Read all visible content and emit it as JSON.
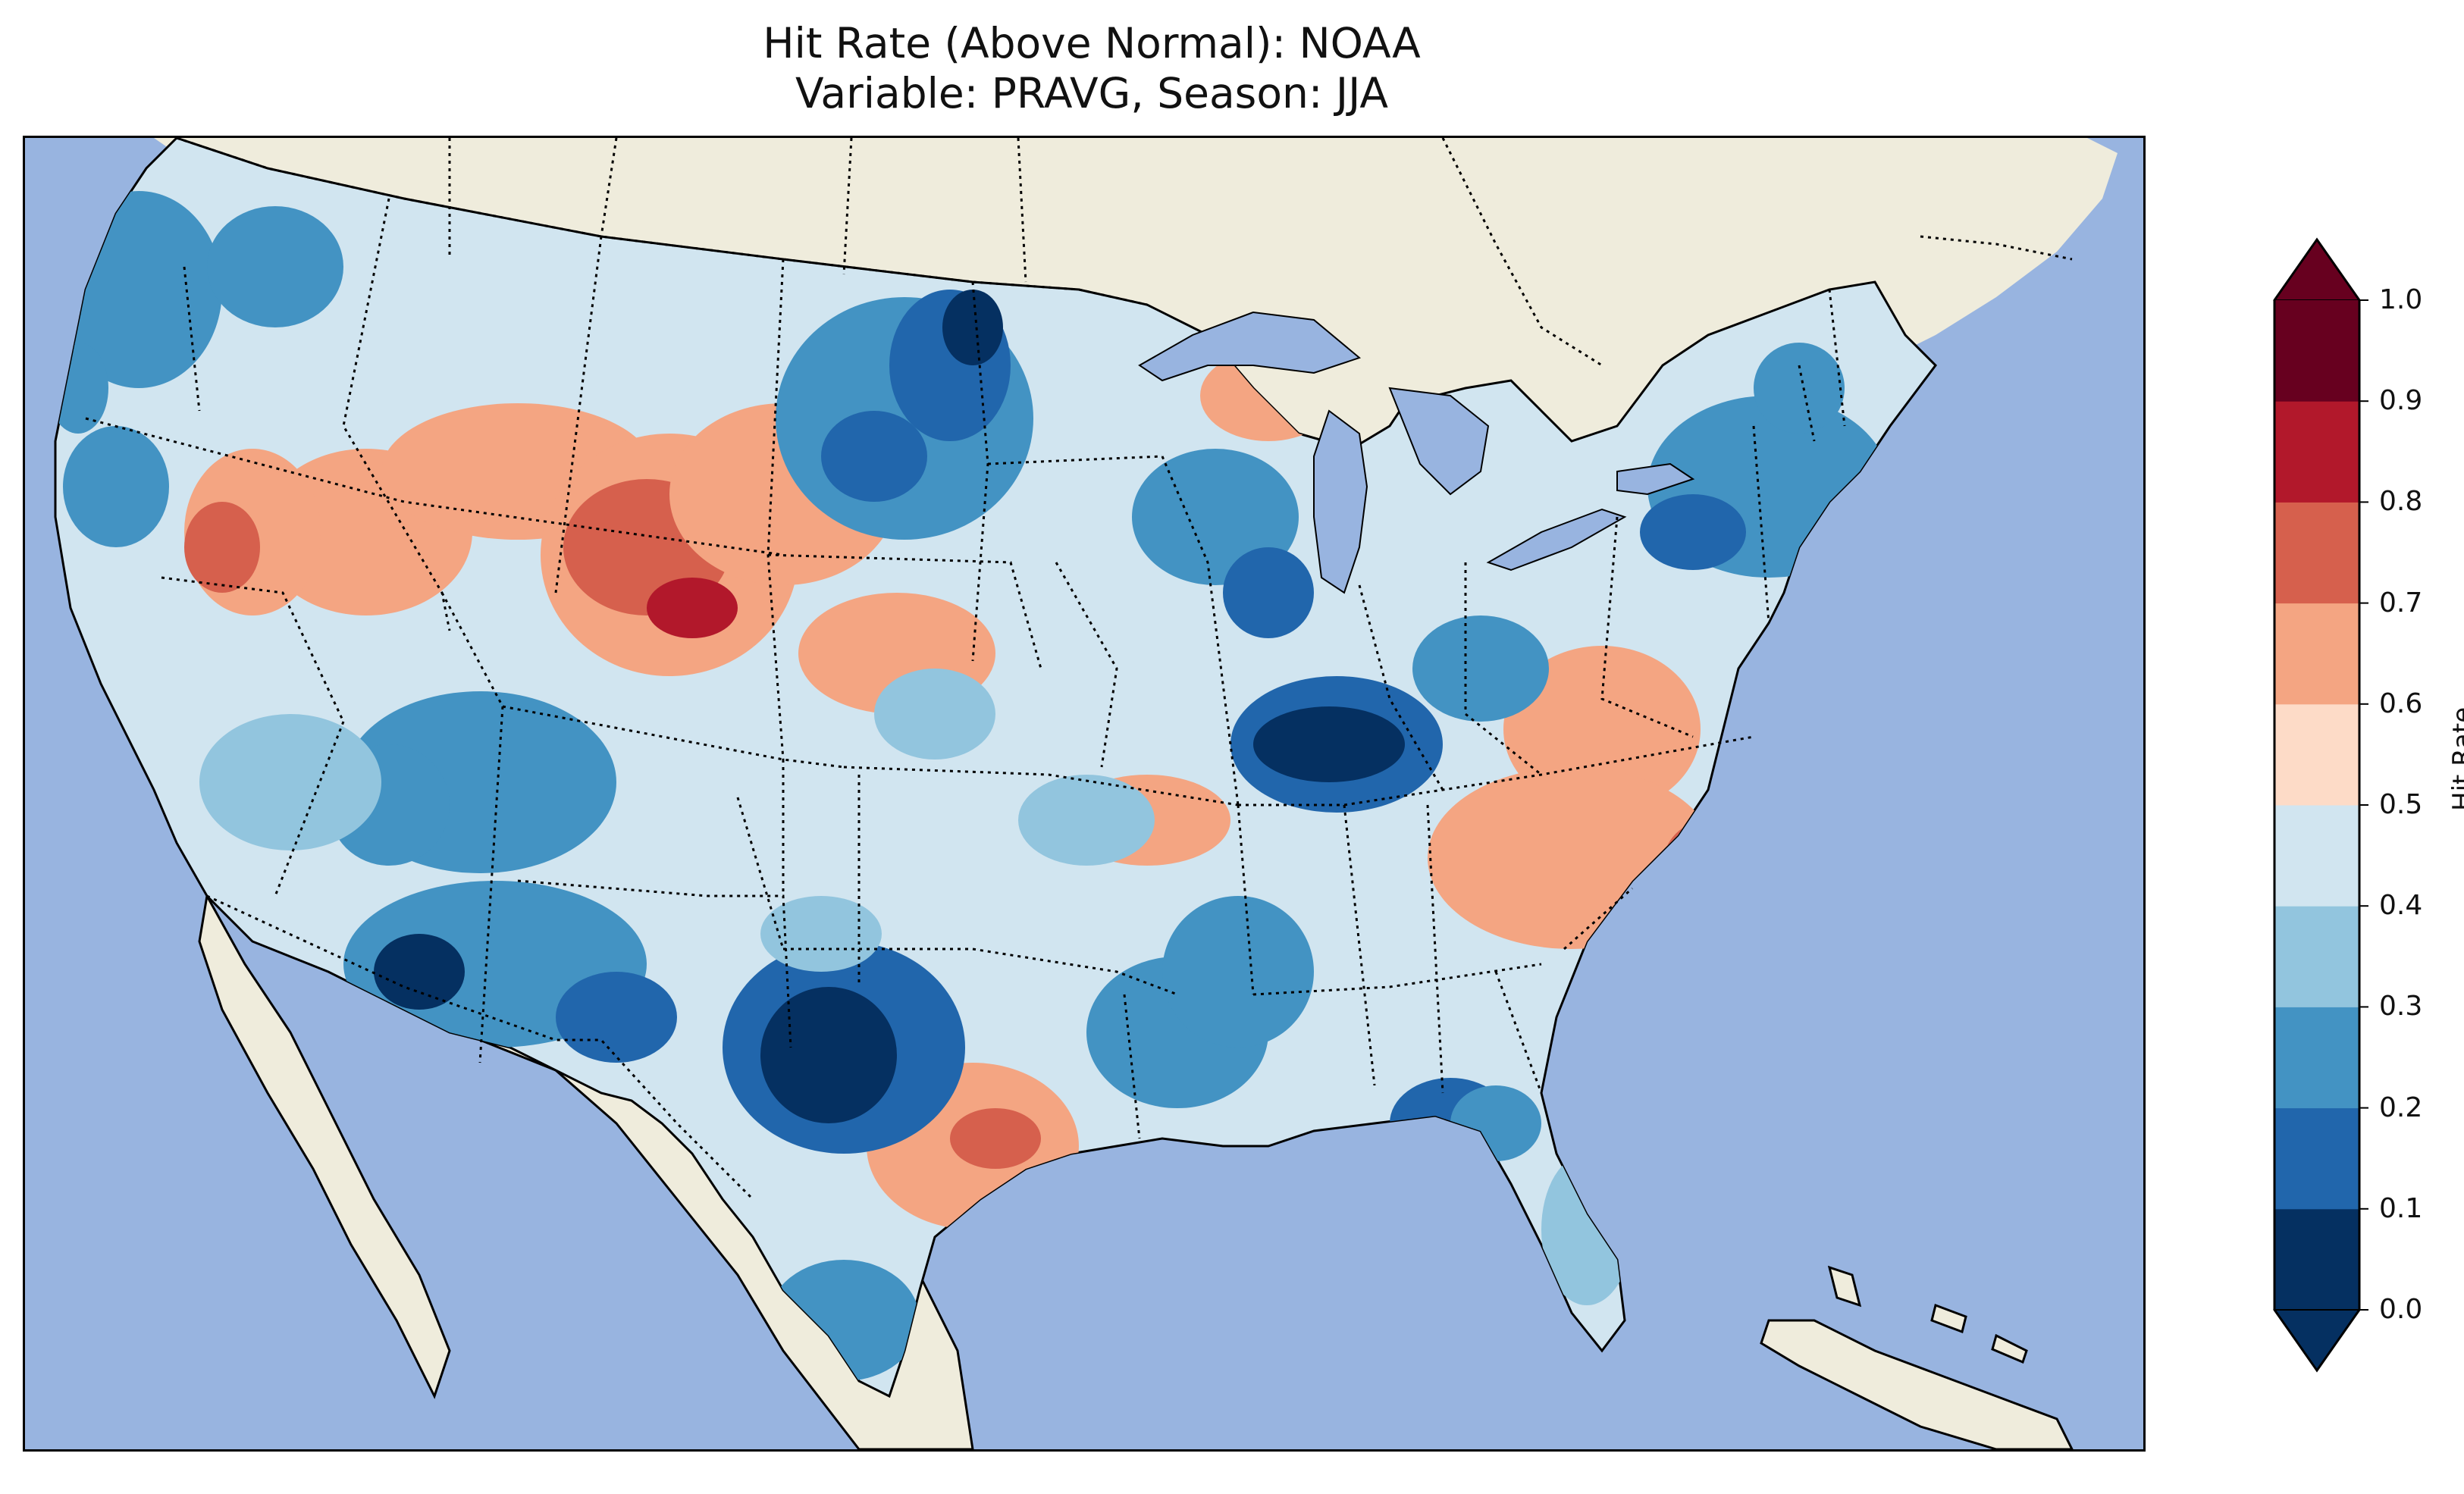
{
  "title": {
    "line1": "Hit Rate (Above Normal): NOAA",
    "line2": "Variable: PRAVG, Season: JJA"
  },
  "colors": {
    "ocean": "#98b4e0",
    "land": "#efecdc",
    "lakes": "#98b4e0"
  },
  "colorbar": {
    "label": "Hit Rate",
    "ticks": [
      "0.0",
      "0.1",
      "0.2",
      "0.3",
      "0.4",
      "0.5",
      "0.6",
      "0.7",
      "0.8",
      "0.9",
      "1.0"
    ],
    "colors": [
      "#053061",
      "#2166ac",
      "#4393c3",
      "#92c5de",
      "#d1e5f0",
      "#fddbc7",
      "#f4a582",
      "#d6604d",
      "#b2182b",
      "#67001f"
    ],
    "extend": "both"
  },
  "legend_items": [
    {
      "range": "0.0-0.1",
      "color": "#053061"
    },
    {
      "range": "0.1-0.2",
      "color": "#2166ac"
    },
    {
      "range": "0.2-0.3",
      "color": "#4393c3"
    },
    {
      "range": "0.3-0.4",
      "color": "#92c5de"
    },
    {
      "range": "0.4-0.5",
      "color": "#d1e5f0"
    },
    {
      "range": "0.5-0.6",
      "color": "#fddbc7"
    },
    {
      "range": "0.6-0.7",
      "color": "#f4a582"
    },
    {
      "range": "0.7-0.8",
      "color": "#d6604d"
    },
    {
      "range": "0.8-0.9",
      "color": "#b2182b"
    },
    {
      "range": "0.9-1.0",
      "color": "#67001f"
    }
  ]
}
